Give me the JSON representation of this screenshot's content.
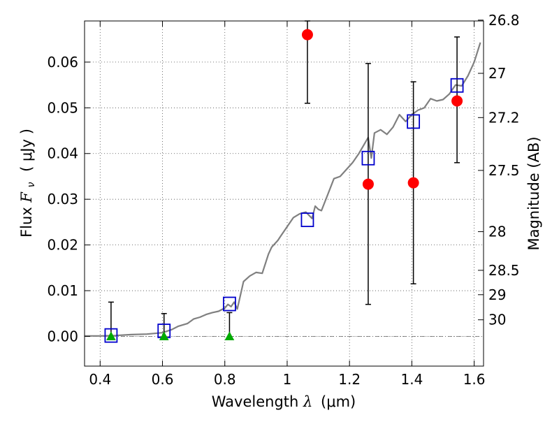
{
  "chart_data": {
    "type": "scatter",
    "title": "",
    "xlabel_prefix": "Wavelength ",
    "xlabel_symbol": "λ",
    "xlabel_units": "(μm)",
    "ylabel_prefix": "Flux ",
    "ylabel_symbol": "F",
    "ylabel_subscript": "ν",
    "ylabel_units": "( μJy )",
    "y2label": "Magnitude (AB)",
    "xlim": [
      0.35,
      1.63
    ],
    "ylim": [
      -0.0065,
      0.069
    ],
    "grid": true,
    "legend": false,
    "x_ticks": [
      0.4,
      0.6,
      0.8,
      1.0,
      1.2,
      1.4,
      1.6
    ],
    "x_tick_labels": [
      "0.4",
      "0.6",
      "0.8",
      "1",
      "1.2",
      "1.4",
      "1.6"
    ],
    "y_ticks": [
      0.0,
      0.01,
      0.02,
      0.03,
      0.04,
      0.05,
      0.06
    ],
    "y_tick_labels": [
      "0.00",
      "0.01",
      "0.02",
      "0.03",
      "0.04",
      "0.05",
      "0.06"
    ],
    "mag_ticks": [
      26.8,
      27,
      27.2,
      27.5,
      28,
      28.5,
      29,
      30
    ],
    "mag_tick_labels": [
      "26.8",
      "27",
      "27.2",
      "27.5",
      "28",
      "28.5",
      "29",
      "30"
    ],
    "colors": {
      "observed": "#ff0000",
      "model_bands": "#0000cc",
      "upper_limits": "#00aa00",
      "model_spectrum": "#808080",
      "error_bars": "#000000"
    },
    "series": [
      {
        "marker": "circle",
        "x": [
          1.065,
          1.26,
          1.405,
          1.545
        ],
        "y": [
          0.066,
          0.0333,
          0.0336,
          0.0515
        ],
        "yerr_low": [
          0.051,
          0.007,
          0.0115,
          0.038
        ],
        "yerr_high": [
          0.069,
          0.0597,
          0.0557,
          0.0655
        ]
      },
      {
        "marker": "open-square",
        "x": [
          0.435,
          0.605,
          0.815,
          1.065,
          1.26,
          1.405,
          1.545
        ],
        "y": [
          0.0002,
          0.0012,
          0.0071,
          0.0255,
          0.039,
          0.047,
          0.0549
        ]
      },
      {
        "marker": "triangle",
        "x": [
          0.435,
          0.605,
          0.815
        ],
        "y": [
          0.0,
          0.0,
          0.0
        ],
        "yerr_high": [
          0.0075,
          0.005,
          0.0052
        ]
      },
      {
        "style": "line",
        "x": [
          0.35,
          0.4,
          0.45,
          0.5,
          0.55,
          0.6,
          0.63,
          0.65,
          0.68,
          0.7,
          0.72,
          0.74,
          0.76,
          0.78,
          0.8,
          0.81,
          0.82,
          0.83,
          0.84,
          0.86,
          0.88,
          0.9,
          0.92,
          0.94,
          0.95,
          0.97,
          0.98,
          1.0,
          1.02,
          1.04,
          1.06,
          1.08,
          1.09,
          1.1,
          1.11,
          1.13,
          1.15,
          1.17,
          1.19,
          1.21,
          1.23,
          1.26,
          1.27,
          1.28,
          1.3,
          1.32,
          1.34,
          1.36,
          1.38,
          1.4,
          1.42,
          1.44,
          1.46,
          1.48,
          1.5,
          1.52,
          1.54,
          1.56,
          1.58,
          1.6,
          1.62
        ],
        "y": [
          0.0001,
          0.0001,
          0.0002,
          0.0004,
          0.0005,
          0.0008,
          0.0015,
          0.0022,
          0.0028,
          0.0038,
          0.0042,
          0.0048,
          0.0052,
          0.0055,
          0.0062,
          0.007,
          0.0065,
          0.0075,
          0.006,
          0.012,
          0.0132,
          0.014,
          0.0138,
          0.018,
          0.0195,
          0.021,
          0.022,
          0.024,
          0.026,
          0.0268,
          0.0272,
          0.0258,
          0.0285,
          0.0278,
          0.0275,
          0.031,
          0.0345,
          0.035,
          0.0365,
          0.038,
          0.04,
          0.0435,
          0.039,
          0.0445,
          0.0452,
          0.0442,
          0.0458,
          0.0485,
          0.047,
          0.0485,
          0.0495,
          0.05,
          0.052,
          0.0515,
          0.0518,
          0.053,
          0.055,
          0.0548,
          0.057,
          0.06,
          0.0643
        ]
      }
    ]
  }
}
